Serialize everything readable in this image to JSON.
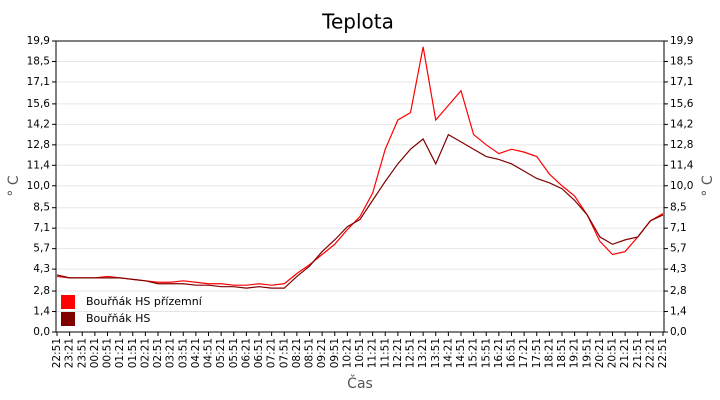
{
  "chart_data": {
    "type": "line",
    "title": "Teplota",
    "xlabel": "Čas",
    "ylabel": "° C",
    "categories": [
      "22:51",
      "23:21",
      "23:51",
      "00:21",
      "00:51",
      "01:21",
      "01:51",
      "02:21",
      "02:51",
      "03:21",
      "03:51",
      "04:21",
      "04:51",
      "05:21",
      "05:51",
      "06:21",
      "06:51",
      "07:21",
      "07:51",
      "08:21",
      "08:51",
      "09:21",
      "09:51",
      "10:21",
      "10:51",
      "11:21",
      "11:51",
      "12:21",
      "12:51",
      "13:21",
      "13:51",
      "14:21",
      "14:51",
      "15:21",
      "15:51",
      "16:21",
      "16:51",
      "17:21",
      "17:51",
      "18:21",
      "18:51",
      "19:21",
      "19:51",
      "20:21",
      "20:51",
      "21:21",
      "21:51",
      "22:21",
      "22:51"
    ],
    "series": [
      {
        "name": "Bouřňák HS přízemní",
        "color": "#ff0000",
        "values": [
          3.8,
          3.7,
          3.7,
          3.7,
          3.8,
          3.7,
          3.6,
          3.5,
          3.4,
          3.4,
          3.5,
          3.4,
          3.3,
          3.3,
          3.2,
          3.2,
          3.3,
          3.2,
          3.3,
          4.0,
          4.6,
          5.3,
          6.0,
          7.0,
          7.9,
          9.5,
          12.5,
          14.5,
          15.0,
          19.5,
          14.5,
          15.5,
          16.5,
          13.5,
          12.8,
          12.2,
          12.5,
          12.3,
          12.0,
          10.8,
          10.0,
          9.3,
          8.0,
          6.2,
          5.3,
          5.5,
          6.5,
          7.6,
          8.1
        ]
      },
      {
        "name": "Bouřňák HS",
        "color": "#800000",
        "values": [
          3.9,
          3.7,
          3.7,
          3.7,
          3.7,
          3.7,
          3.6,
          3.5,
          3.3,
          3.3,
          3.3,
          3.2,
          3.2,
          3.1,
          3.1,
          3.0,
          3.1,
          3.0,
          3.0,
          3.8,
          4.5,
          5.5,
          6.3,
          7.2,
          7.7,
          9.0,
          10.3,
          11.5,
          12.5,
          13.2,
          11.5,
          13.5,
          13.0,
          12.5,
          12.0,
          11.8,
          11.5,
          11.0,
          10.5,
          10.2,
          9.8,
          9.0,
          8.0,
          6.5,
          6.0,
          6.3,
          6.5,
          7.6,
          8.0
        ]
      }
    ],
    "ylim": [
      0,
      19.9
    ],
    "yticks": [
      {
        "value": 0,
        "label": "0,0"
      },
      {
        "value": 1.4,
        "label": "1,4"
      },
      {
        "value": 2.8,
        "label": "2,8"
      },
      {
        "value": 4.3,
        "label": "4,3"
      },
      {
        "value": 5.7,
        "label": "5,7"
      },
      {
        "value": 7.1,
        "label": "7,1"
      },
      {
        "value": 8.5,
        "label": "8,5"
      },
      {
        "value": 10.0,
        "label": "10,0"
      },
      {
        "value": 11.4,
        "label": "11,4"
      },
      {
        "value": 12.8,
        "label": "12,8"
      },
      {
        "value": 14.2,
        "label": "14,2"
      },
      {
        "value": 15.6,
        "label": "15,6"
      },
      {
        "value": 17.1,
        "label": "17,1"
      },
      {
        "value": 18.5,
        "label": "18,5"
      },
      {
        "value": 19.9,
        "label": "19,9"
      }
    ],
    "grid": true
  }
}
